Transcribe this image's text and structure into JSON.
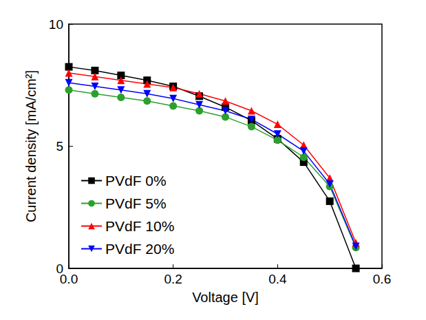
{
  "chart_data": {
    "type": "line",
    "x_label": "Voltage [V]",
    "y_label": "Current density [mA/cm²]",
    "x": [
      0,
      0.05,
      0.1,
      0.15,
      0.2,
      0.25,
      0.3,
      0.35,
      0.4,
      0.45,
      0.5,
      0.55
    ],
    "series": [
      {
        "name": "PVdF 0%",
        "color": "#000000",
        "marker": "square",
        "values": [
          8.25,
          8.1,
          7.9,
          7.7,
          7.45,
          7.05,
          6.6,
          6.05,
          5.3,
          4.35,
          2.75,
          0.0
        ]
      },
      {
        "name": "PVdF 5%",
        "color": "#2ca02c",
        "marker": "circle",
        "values": [
          7.3,
          7.15,
          7.0,
          6.85,
          6.65,
          6.45,
          6.2,
          5.8,
          5.25,
          4.55,
          3.35,
          0.85
        ]
      },
      {
        "name": "PVdF 10%",
        "color": "#ff0000",
        "marker": "triangle",
        "values": [
          8.0,
          7.85,
          7.7,
          7.55,
          7.4,
          7.15,
          6.85,
          6.45,
          5.9,
          5.05,
          3.7,
          1.05
        ]
      },
      {
        "name": "PVdF 20%",
        "color": "#0000ff",
        "marker": "down_triangle",
        "values": [
          7.6,
          7.45,
          7.3,
          7.15,
          6.95,
          6.7,
          6.45,
          6.1,
          5.5,
          4.8,
          3.45,
          0.9
        ]
      }
    ],
    "xlim": [
      0,
      0.6
    ],
    "xticks": [
      {
        "value": 0,
        "label": "0.0"
      },
      0.2,
      0.4,
      0.6
    ],
    "ylim": [
      0,
      10
    ],
    "yticks": [
      0,
      5,
      10
    ],
    "grid": false,
    "legend": "lower left"
  }
}
